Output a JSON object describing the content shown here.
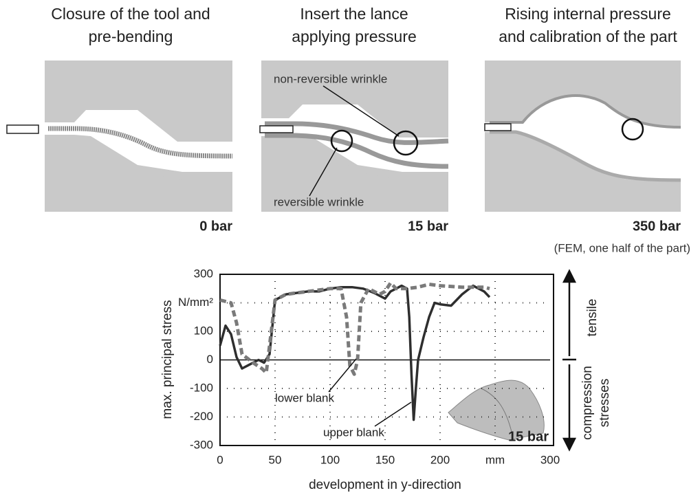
{
  "panels": [
    {
      "title": [
        "Closure of the tool and",
        "pre-bending"
      ],
      "pressure": "0 bar"
    },
    {
      "title": [
        "Insert the lance",
        "applying pressure"
      ],
      "labels": [
        "non-reversible wrinkle",
        "reversible wrinkle"
      ],
      "pressure": "15 bar"
    },
    {
      "title": [
        "Rising internal pressure",
        "and calibration of the part"
      ],
      "pressure": "350 bar",
      "note": "(FEM, one half of the part)"
    }
  ],
  "chart_data": {
    "type": "line",
    "xlabel": "development in y-direction",
    "ylabel": "max. principal stress",
    "xlim": [
      0,
      300
    ],
    "ylim": [
      -300,
      300
    ],
    "xticks": [
      0,
      50,
      100,
      150,
      200,
      {
        "value": 250,
        "label": "mm"
      },
      300
    ],
    "yticks": [
      -300,
      -200,
      -100,
      0,
      100,
      {
        "value": 200,
        "label": "N/mm²"
      },
      300
    ],
    "grid": true,
    "series": [
      {
        "name": "upper blank",
        "color": "#2e2e2e",
        "style": "solid",
        "x": [
          0,
          5,
          10,
          15,
          20,
          25,
          35,
          40,
          45,
          50,
          60,
          70,
          80,
          90,
          100,
          110,
          120,
          130,
          140,
          150,
          155,
          160,
          165,
          170,
          172,
          174,
          176,
          178,
          180,
          185,
          190,
          195,
          200,
          210,
          220,
          230,
          240,
          245
        ],
        "values": [
          50,
          120,
          90,
          10,
          -30,
          -20,
          0,
          -10,
          20,
          210,
          230,
          235,
          240,
          240,
          250,
          255,
          255,
          250,
          235,
          215,
          240,
          250,
          260,
          250,
          150,
          -50,
          -210,
          -100,
          0,
          80,
          150,
          200,
          195,
          190,
          230,
          260,
          240,
          220
        ]
      },
      {
        "name": "lower blank",
        "color": "#7a7a7a",
        "style": "dashed",
        "x": [
          0,
          10,
          15,
          20,
          30,
          38,
          42,
          45,
          50,
          60,
          80,
          100,
          110,
          115,
          118,
          122,
          125,
          128,
          135,
          145,
          150,
          155,
          160,
          170,
          180,
          190,
          200,
          220,
          240,
          245
        ],
        "values": [
          210,
          200,
          130,
          20,
          -10,
          -30,
          -45,
          50,
          210,
          230,
          240,
          250,
          250,
          150,
          -20,
          -50,
          0,
          200,
          250,
          230,
          240,
          270,
          250,
          250,
          255,
          265,
          260,
          255,
          255,
          250
        ]
      }
    ],
    "inset_label": "15 bar",
    "side_labels": {
      "tensile": "tensile",
      "compression": [
        "compression",
        "stresses"
      ]
    }
  }
}
